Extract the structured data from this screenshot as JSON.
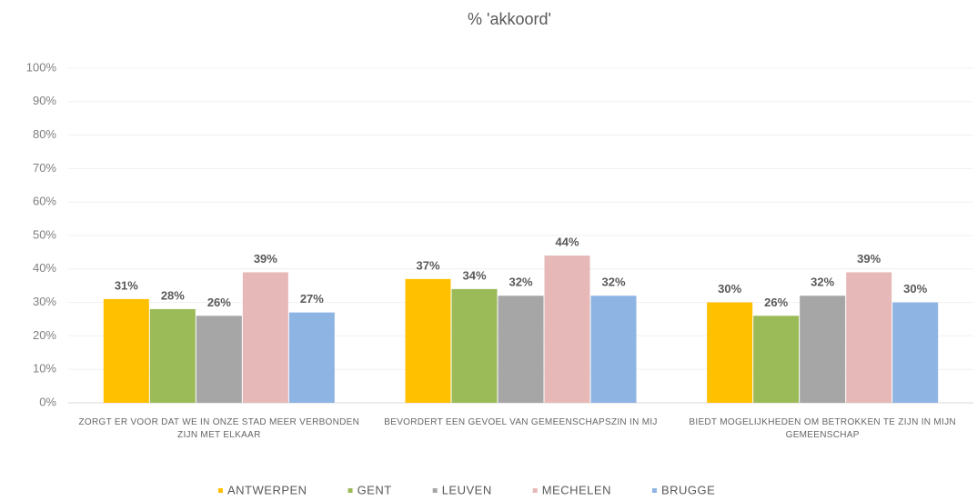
{
  "chart_data": {
    "type": "bar",
    "title": "% 'akkoord'",
    "categories": [
      "ZORGT ER VOOR DAT WE IN ONZE STAD MEER VERBONDEN ZIJN MET ELKAAR",
      "BEVORDERT EEN GEVOEL VAN GEMEENSCHAPSZIN IN MIJ",
      "BIEDT MOGELIJKHEDEN OM BETROKKEN TE ZIJN IN MIJN GEMEENSCHAP"
    ],
    "series": [
      {
        "name": "ANTWERPEN",
        "color": "#ffc000",
        "values": [
          31,
          37,
          30
        ],
        "value_labels": [
          "31%",
          "37%",
          "30%"
        ]
      },
      {
        "name": "GENT",
        "color": "#9bbb59",
        "values": [
          28,
          34,
          26
        ],
        "value_labels": [
          "28%",
          "34%",
          "26%"
        ]
      },
      {
        "name": "LEUVEN",
        "color": "#a6a6a6",
        "values": [
          26,
          32,
          32
        ],
        "value_labels": [
          "26%",
          "32%",
          "32%"
        ]
      },
      {
        "name": "MECHELEN",
        "color": "#e6b9b8",
        "values": [
          39,
          44,
          39
        ],
        "value_labels": [
          "39%",
          "44%",
          "39%"
        ]
      },
      {
        "name": "BRUGGE",
        "color": "#8eb4e3",
        "values": [
          27,
          32,
          30
        ],
        "value_labels": [
          "27%",
          "32%",
          "30%"
        ]
      }
    ],
    "ylim": [
      0,
      100
    ],
    "yticks": [
      {
        "value": 0,
        "label": "0%"
      },
      {
        "value": 10,
        "label": "10%"
      },
      {
        "value": 20,
        "label": "20%"
      },
      {
        "value": 30,
        "label": "30%"
      },
      {
        "value": 40,
        "label": "40%"
      },
      {
        "value": 50,
        "label": "50%"
      },
      {
        "value": 60,
        "label": "60%"
      },
      {
        "value": 70,
        "label": "70%"
      },
      {
        "value": 80,
        "label": "80%"
      },
      {
        "value": 90,
        "label": "90%"
      },
      {
        "value": 100,
        "label": "100%"
      }
    ],
    "grid": true,
    "legend": "bottom"
  }
}
